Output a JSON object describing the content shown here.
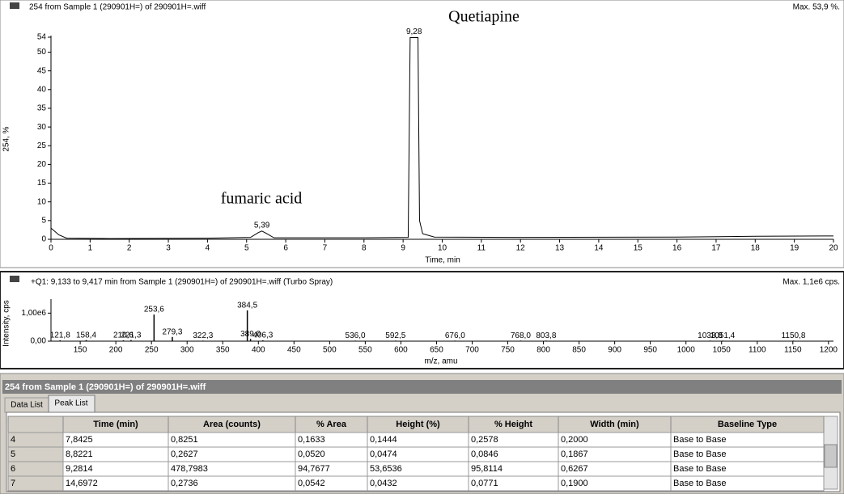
{
  "chromatogram": {
    "type": "line",
    "header": "254 from Sample 1 (290901H=) of 290901H=.wiff",
    "max_label": "Max. 53,9 %.",
    "y_label": "254, %",
    "x_label": "Time, min",
    "annotations": [
      "Quetiapine",
      "fumaric acid"
    ],
    "peak_labels": [
      "9,28",
      "5,39"
    ],
    "peak_label_x": [
      9.28,
      5.39
    ],
    "peak_label_y": [
      53.9,
      2.2
    ],
    "x": [
      0,
      0.2,
      0.4,
      1.5,
      4,
      5.1,
      5.3,
      5.39,
      5.5,
      5.7,
      8,
      9.13,
      9.18,
      9.38,
      9.42,
      9.5,
      9.8,
      12,
      16,
      18,
      20
    ],
    "values": [
      3,
      1.2,
      0.3,
      0.2,
      0.3,
      0.5,
      1.8,
      2.2,
      1.6,
      0.4,
      0.4,
      0.5,
      53.9,
      53.9,
      5,
      1.5,
      0.6,
      0.5,
      0.6,
      0.8,
      0.9
    ],
    "color": "#000000",
    "xlim": [
      0,
      20
    ],
    "ylim": [
      0,
      54
    ],
    "xticks": [
      0,
      1,
      2,
      3,
      4,
      5,
      6,
      7,
      8,
      9,
      10,
      11,
      12,
      13,
      14,
      15,
      16,
      17,
      18,
      19,
      20
    ],
    "yticks": [
      0,
      5,
      10,
      15,
      20,
      25,
      30,
      35,
      40,
      45,
      50,
      54
    ]
  },
  "spectrum": {
    "type": "stem",
    "header": "+Q1: 9,133 to 9,417 min from Sample 1 (290901H=) of 290901H=.wiff (Turbo Spray)",
    "max_label": "Max. 1,1e6 cps.",
    "y_label": "Intensity, cps",
    "x_label": "m/z, amu",
    "x": [
      121.8,
      158.4,
      210.6,
      221.3,
      253.6,
      279.3,
      322.3,
      384.5,
      389.0,
      406.3,
      536.0,
      592.5,
      676.0,
      768.0,
      803.8,
      1033.8,
      1051.4,
      1150.8
    ],
    "peak_labels": [
      "121,8",
      "158,4",
      "210,6",
      "221,3",
      "253,6",
      "279,3",
      "322,3",
      "384,5",
      "389,0",
      "406,3",
      "536,0",
      "592,5",
      "676,0",
      "768,0",
      "803,8",
      "1033,8",
      "1051,4",
      "1150,8"
    ],
    "values": [
      30000,
      40000,
      30000,
      40000,
      950000,
      150000,
      20000,
      1100000,
      80000,
      30000,
      20000,
      20000,
      20000,
      20000,
      20000,
      20000,
      20000,
      20000
    ],
    "xlim": [
      109,
      1207
    ],
    "ylim": [
      0,
      1500000
    ],
    "xticks": [
      150,
      200,
      250,
      300,
      350,
      400,
      450,
      500,
      550,
      600,
      650,
      700,
      750,
      800,
      850,
      900,
      950,
      1000,
      1050,
      1100,
      1150,
      1200
    ],
    "yticks": [
      {
        "value": 0,
        "label": "0,00"
      },
      {
        "value": 1000000,
        "label": "1,00e6"
      }
    ]
  },
  "table_panel": {
    "title": "254 from Sample 1 (290901H=) of 290901H=.wiff",
    "tabs": [
      "Data List",
      "Peak List"
    ],
    "columns": [
      "Time (min)",
      "Area (counts)",
      "% Area",
      "Height (%)",
      "% Height",
      "Width (min)",
      "Baseline Type"
    ],
    "rows": [
      [
        "4",
        "7,8425",
        "0,8251",
        "0,1633",
        "0,1444",
        "0,2578",
        "0,2000",
        "Base to Base"
      ],
      [
        "5",
        "8,8221",
        "0,2627",
        "0,0520",
        "0,0474",
        "0,0846",
        "0,1867",
        "Base to Base"
      ],
      [
        "6",
        "9,2814",
        "478,7983",
        "94,7677",
        "53,6536",
        "95,8114",
        "0,6267",
        "Base to Base"
      ],
      [
        "7",
        "14,6972",
        "0,2736",
        "0,0542",
        "0,0432",
        "0,0771",
        "0,1900",
        "Base to Base"
      ]
    ]
  }
}
